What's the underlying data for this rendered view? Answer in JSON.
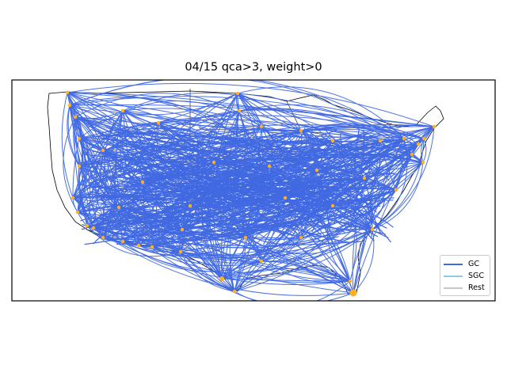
{
  "figure": {
    "title": "04/15 qca>3, weight>0"
  },
  "map": {
    "region": "contiguous United States",
    "border_color": "#000000",
    "edge_color": "#4169e1",
    "node_color": "#ffb01f"
  },
  "legend": {
    "placement": "bottom-right",
    "items": [
      {
        "label": "GC",
        "color": "#4169e1"
      },
      {
        "label": "SGC",
        "color": "#8ecbe6"
      },
      {
        "label": "Rest",
        "color": "#c8c8c8"
      }
    ]
  }
}
